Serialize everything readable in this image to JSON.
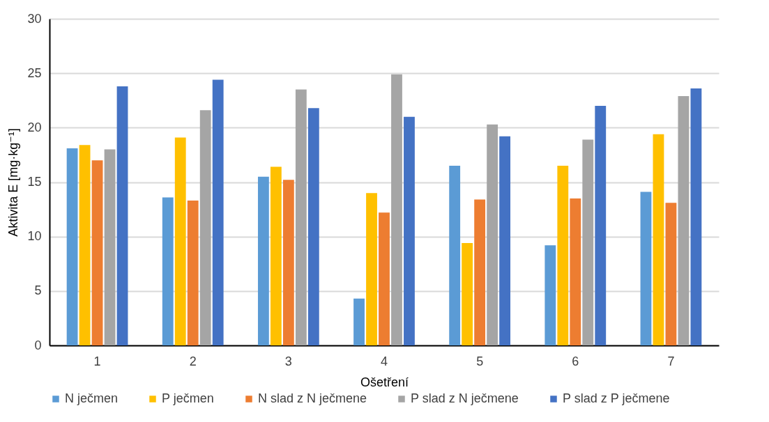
{
  "chart_data": {
    "type": "bar",
    "xlabel": "Ošetření",
    "ylabel": "Aktivita E [mg·kg⁻¹]",
    "categories": [
      "1",
      "2",
      "3",
      "4",
      "5",
      "6",
      "7"
    ],
    "series": [
      {
        "name": "N ječmen",
        "color": "#5b9bd5",
        "values": [
          18.1,
          13.6,
          15.5,
          4.3,
          16.5,
          9.2,
          14.1
        ]
      },
      {
        "name": "P ječmen",
        "color": "#ffc000",
        "values": [
          18.4,
          19.1,
          16.4,
          14.0,
          9.4,
          16.5,
          19.4
        ]
      },
      {
        "name": "N slad z N ječmene",
        "color": "#ed7d31",
        "values": [
          17.0,
          13.3,
          15.2,
          12.2,
          13.4,
          13.5,
          13.1
        ]
      },
      {
        "name": "P slad z N ječmene",
        "color": "#a5a5a5",
        "values": [
          18.0,
          21.6,
          23.5,
          24.9,
          20.3,
          18.9,
          22.9
        ]
      },
      {
        "name": "P slad z P ječmene",
        "color": "#4472c4",
        "values": [
          23.8,
          24.4,
          21.8,
          21.0,
          19.2,
          22.0,
          23.6
        ]
      }
    ],
    "ylim": [
      0,
      30
    ],
    "yticks": [
      0,
      5,
      10,
      15,
      20,
      25,
      30
    ],
    "grid": "y",
    "legend": "bottom"
  }
}
